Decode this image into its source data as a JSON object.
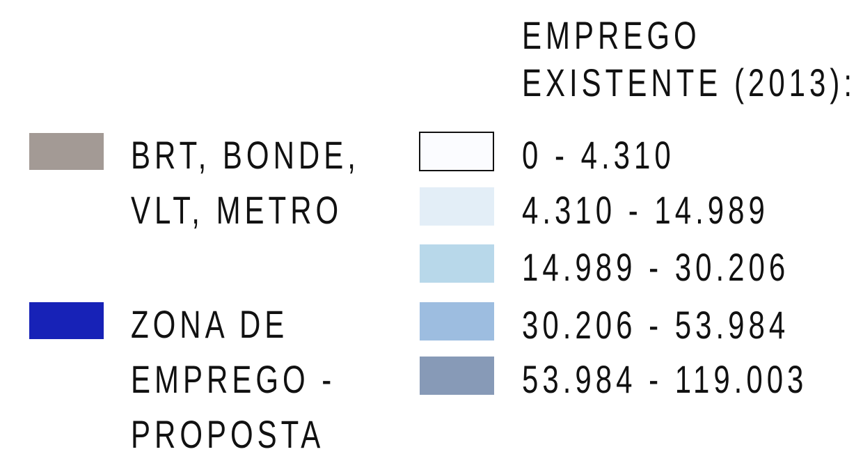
{
  "legend": {
    "items": [
      {
        "lines": [
          "BRT, BONDE,",
          "VLT, METRO"
        ],
        "color": "#a39a95"
      },
      {
        "lines": [
          "ZONA DE",
          "EMPREGO -",
          "PROPOSTA"
        ],
        "color": "#1722b7"
      }
    ],
    "scale": {
      "title": [
        "EMPREGO",
        "EXISTENTE (2013):"
      ],
      "classes": [
        {
          "label": "0 - 4.310",
          "color": "#fbfcff"
        },
        {
          "label": "4.310 - 14.989",
          "color": "#e3eef7"
        },
        {
          "label": "14.989 - 30.206",
          "color": "#b8d8ea"
        },
        {
          "label": "30.206 - 53.984",
          "color": "#9dbde0"
        },
        {
          "label": "53.984 - 119.003",
          "color": "#879ab7"
        }
      ]
    }
  }
}
